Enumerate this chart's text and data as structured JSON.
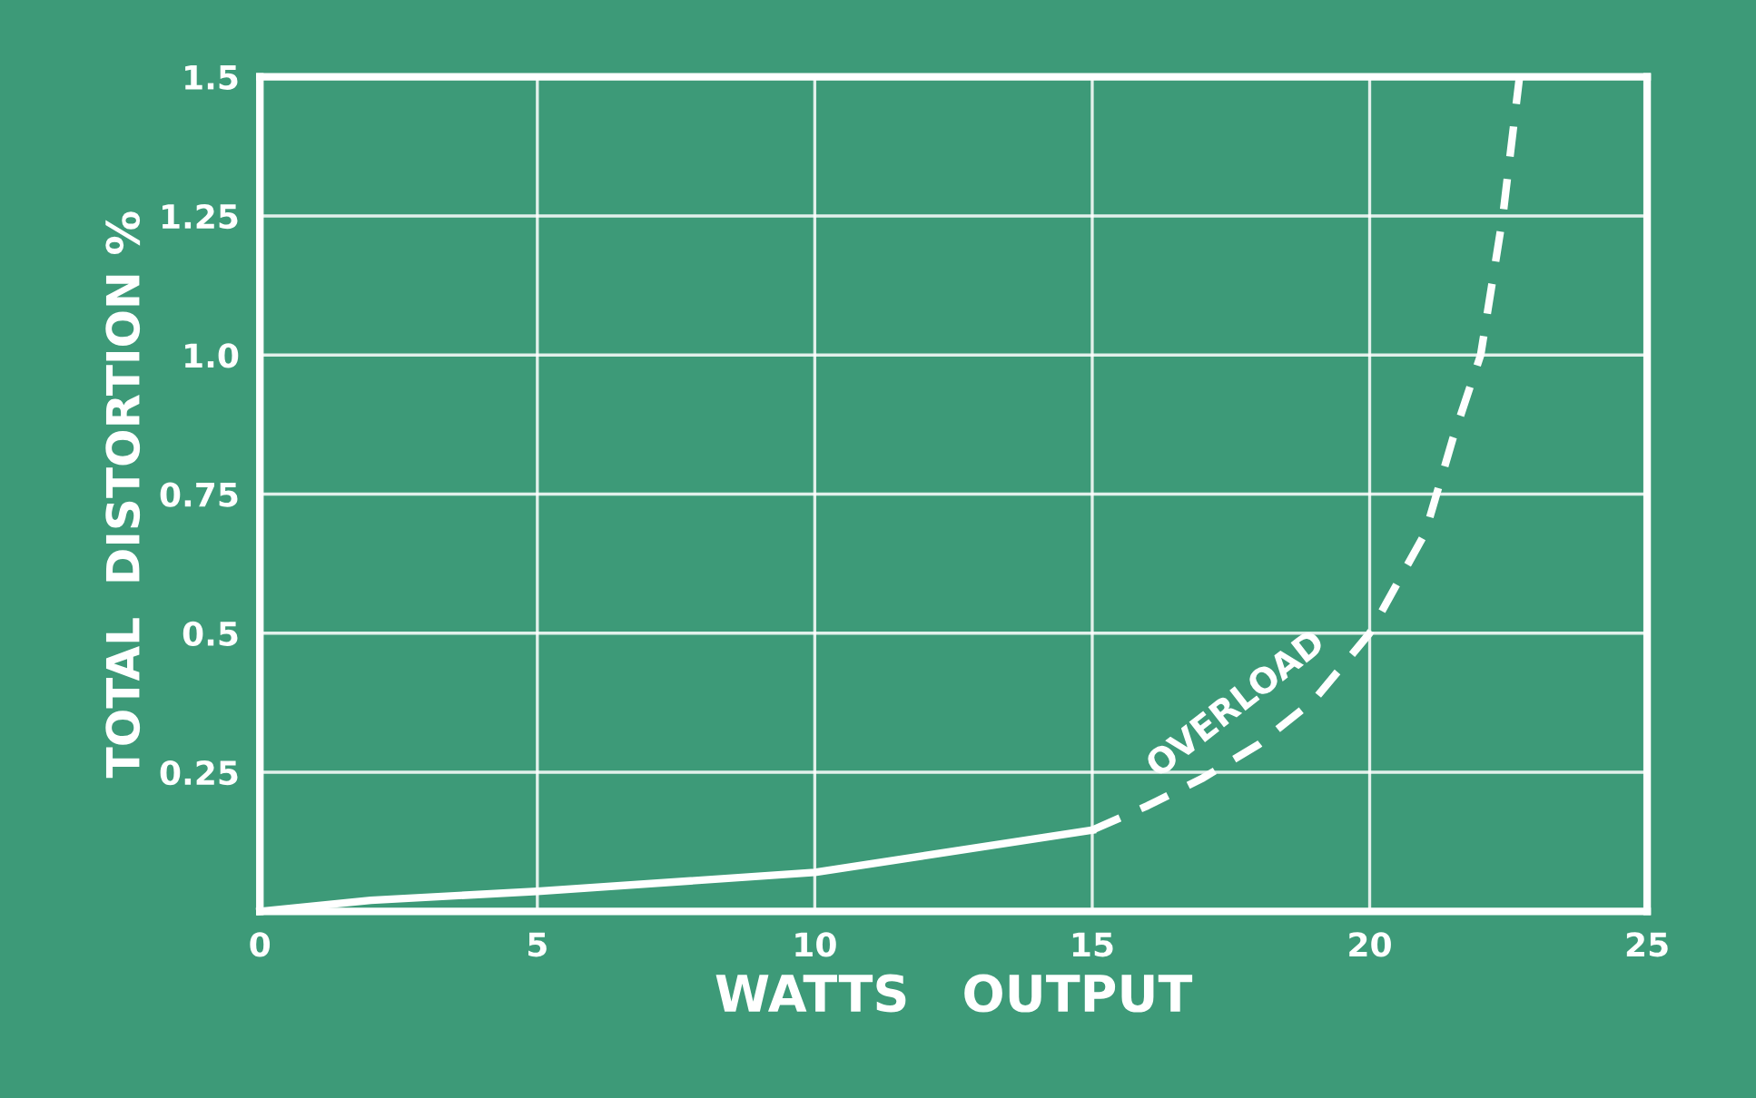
{
  "chart_data": {
    "type": "line",
    "xlabel": "WATTS   OUTPUT",
    "ylabel": "TOTAL  DISTORTION %",
    "xlim": [
      0,
      25
    ],
    "ylim": [
      0,
      1.5
    ],
    "xticks": [
      0,
      5,
      10,
      15,
      20,
      25
    ],
    "yticks": [
      {
        "value": 0,
        "label": null
      },
      0.25,
      0.5,
      0.75,
      {
        "value": 1.0,
        "label": "1.0"
      },
      1.25,
      1.5
    ],
    "grid": true,
    "series": [
      {
        "color": "#ffffff",
        "line_style": "solid",
        "x": [
          0,
          2,
          5,
          10,
          15
        ],
        "values": [
          0,
          0.02,
          0.036,
          0.07,
          0.146
        ]
      },
      {
        "color": "#ffffff",
        "line_style": "dashed",
        "x": [
          15,
          16,
          17,
          18,
          19,
          20,
          21,
          21.5,
          22,
          22.4,
          22.7
        ],
        "values": [
          0.146,
          0.19,
          0.24,
          0.3,
          0.38,
          0.5,
          0.68,
          0.85,
          1.0,
          1.25,
          1.5
        ]
      }
    ],
    "annotations": [
      "OVERLOAD"
    ]
  }
}
